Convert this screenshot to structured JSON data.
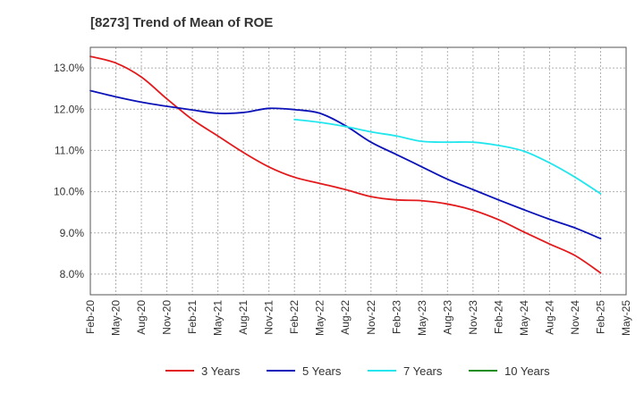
{
  "chart_data": {
    "type": "line",
    "title": "[8273]  Trend of Mean of ROE",
    "xlabel": "",
    "ylabel": "",
    "ylim": [
      7.5,
      13.5
    ],
    "yticks": [
      8.0,
      9.0,
      10.0,
      11.0,
      12.0,
      13.0
    ],
    "ytick_labels": [
      "8.0%",
      "9.0%",
      "10.0%",
      "11.0%",
      "12.0%",
      "13.0%"
    ],
    "categories": [
      "Feb-20",
      "May-20",
      "Aug-20",
      "Nov-20",
      "Feb-21",
      "May-21",
      "Aug-21",
      "Nov-21",
      "Feb-22",
      "May-22",
      "Aug-22",
      "Nov-22",
      "Feb-23",
      "May-23",
      "Aug-23",
      "Nov-23",
      "Feb-24",
      "May-24",
      "Aug-24",
      "Nov-24",
      "Feb-25",
      "May-25"
    ],
    "grid": true,
    "legend_position": "bottom",
    "series": [
      {
        "name": "3 Years",
        "color": "#e31a1c",
        "values": [
          13.28,
          13.12,
          12.78,
          12.25,
          11.75,
          11.35,
          10.95,
          10.6,
          10.35,
          10.2,
          10.05,
          9.88,
          9.8,
          9.78,
          9.7,
          9.55,
          9.32,
          9.02,
          8.73,
          8.45,
          8.03,
          null
        ]
      },
      {
        "name": "5 Years",
        "color": "#0a12b8",
        "values": [
          12.45,
          12.3,
          12.17,
          12.07,
          11.98,
          11.9,
          11.92,
          12.02,
          11.99,
          11.9,
          11.6,
          11.2,
          10.9,
          10.6,
          10.3,
          10.05,
          9.8,
          9.56,
          9.33,
          9.12,
          8.86,
          null
        ]
      },
      {
        "name": "7 Years",
        "color": "#22e6ee",
        "values": [
          null,
          null,
          null,
          null,
          null,
          null,
          null,
          null,
          11.75,
          11.68,
          11.58,
          11.45,
          11.35,
          11.22,
          11.2,
          11.2,
          11.12,
          10.98,
          10.7,
          10.35,
          9.95,
          null
        ]
      },
      {
        "name": "10 Years",
        "color": "#1a8c1a",
        "values": [
          null,
          null,
          null,
          null,
          null,
          null,
          null,
          null,
          null,
          null,
          null,
          null,
          null,
          null,
          null,
          null,
          null,
          null,
          null,
          null,
          null,
          null
        ]
      }
    ]
  }
}
